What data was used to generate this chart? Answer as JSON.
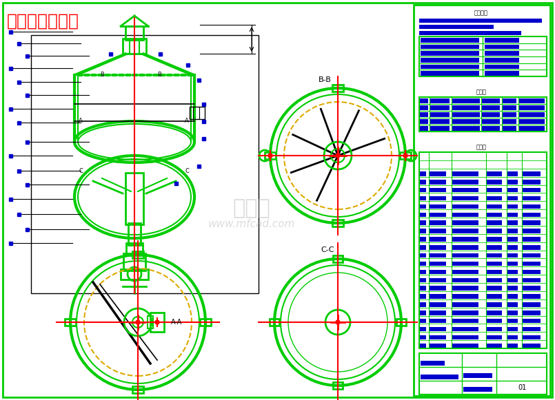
{
  "title": "糖化设备装配图",
  "title_color": "#FF0000",
  "title_fontsize": 18,
  "bg_color": "#FFFFFF",
  "border_color": "#00CC00",
  "drawing_color": "#000000",
  "green_color": "#00CC00",
  "blue_color": "#0000CC",
  "red_color": "#FF0000",
  "yellow_color": "#DDAA00",
  "watermark_line1": "沐风网",
  "watermark_line2": "www.mfcad.com",
  "tech_req_title": "技术要求",
  "port_table_title": "管口表",
  "parts_table_title": "零件表",
  "page_num": "01"
}
